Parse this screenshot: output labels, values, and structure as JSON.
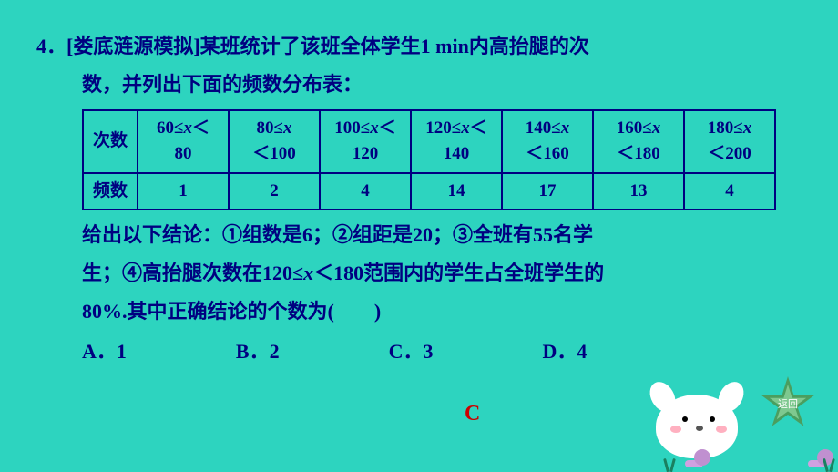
{
  "question": {
    "number": "4．",
    "source": "[娄底涟源模拟]",
    "text_line1": "某班统计了该班全体学生1 min内高抬腿的次",
    "text_line2": "数，并列出下面的频数分布表：",
    "conclusion_line1": "给出以下结论：①组数是6；②组距是20；③全班有55名学",
    "conclusion_line2": "生；④高抬腿次数在120≤",
    "conclusion_line2b": "＜180范围内的学生占全班学生的",
    "conclusion_line3": "80%.其中正确结论的个数为(　　)"
  },
  "table": {
    "row1_header": "次数",
    "row2_header": "频数",
    "intervals": [
      {
        "range_top": "60≤",
        "range_bot": "80",
        "mid": "＜",
        "freq": "1"
      },
      {
        "range_top": "80≤",
        "range_bot": "＜100",
        "freq": "2"
      },
      {
        "range_top": "100≤",
        "range_bot": "120",
        "mid": "＜",
        "freq": "4"
      },
      {
        "range_top": "120≤",
        "range_bot": "140",
        "mid": "＜",
        "freq": "14"
      },
      {
        "range_top": "140≤",
        "range_bot": "＜160",
        "freq": "17"
      },
      {
        "range_top": "160≤",
        "range_bot": "＜180",
        "freq": "13"
      },
      {
        "range_top": "180≤",
        "range_bot": "＜200",
        "freq": "4"
      }
    ]
  },
  "options": {
    "a": "A．1",
    "b": "B．2",
    "c": "C．3",
    "d": "D．4"
  },
  "answer": "C",
  "return_label": "返回",
  "colors": {
    "background": "#2dd4bf",
    "text": "#000080",
    "answer_color": "#cc0000"
  }
}
